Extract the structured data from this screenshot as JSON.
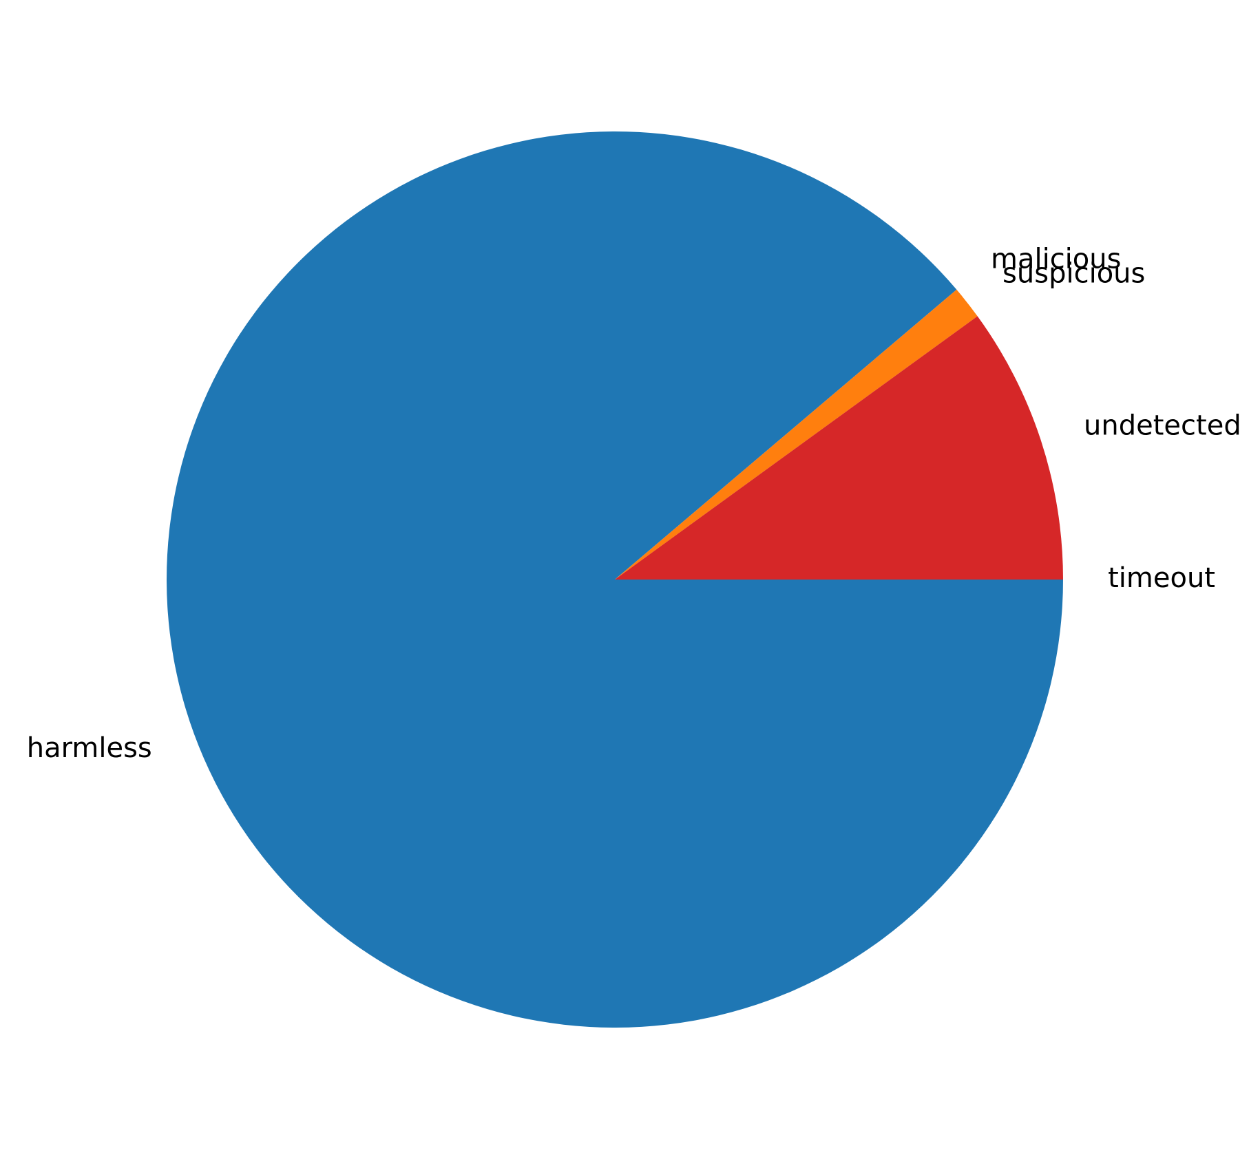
{
  "chart_data": {
    "type": "pie",
    "title": "",
    "start_angle_deg": 0,
    "direction": "clockwise",
    "slices": [
      {
        "label": "harmless",
        "value": 0.888,
        "color": "#1f77b4"
      },
      {
        "label": "malicious",
        "value": 0.0,
        "color": "#ff7f0e"
      },
      {
        "label": "suspicious",
        "value": 0.012,
        "color": "#ff7f0e"
      },
      {
        "label": "undetected",
        "value": 0.1,
        "color": "#d62728"
      },
      {
        "label": "timeout",
        "value": 0.0,
        "color": "#d62728"
      }
    ]
  }
}
